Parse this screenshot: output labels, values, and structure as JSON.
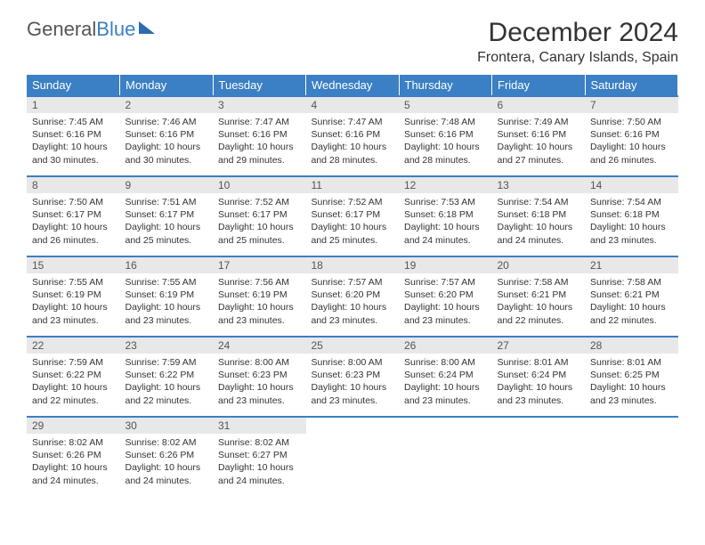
{
  "logo": {
    "text1": "General",
    "text2": "Blue"
  },
  "title": "December 2024",
  "location": "Frontera, Canary Islands, Spain",
  "day_headers": [
    "Sunday",
    "Monday",
    "Tuesday",
    "Wednesday",
    "Thursday",
    "Friday",
    "Saturday"
  ],
  "header_bg": "#3b7fc4",
  "daynum_bg": "#e8e8e8",
  "border_color": "#3b7fc4",
  "days": [
    {
      "n": "1",
      "sunrise": "7:45 AM",
      "sunset": "6:16 PM",
      "daylight": "10 hours and 30 minutes."
    },
    {
      "n": "2",
      "sunrise": "7:46 AM",
      "sunset": "6:16 PM",
      "daylight": "10 hours and 30 minutes."
    },
    {
      "n": "3",
      "sunrise": "7:47 AM",
      "sunset": "6:16 PM",
      "daylight": "10 hours and 29 minutes."
    },
    {
      "n": "4",
      "sunrise": "7:47 AM",
      "sunset": "6:16 PM",
      "daylight": "10 hours and 28 minutes."
    },
    {
      "n": "5",
      "sunrise": "7:48 AM",
      "sunset": "6:16 PM",
      "daylight": "10 hours and 28 minutes."
    },
    {
      "n": "6",
      "sunrise": "7:49 AM",
      "sunset": "6:16 PM",
      "daylight": "10 hours and 27 minutes."
    },
    {
      "n": "7",
      "sunrise": "7:50 AM",
      "sunset": "6:16 PM",
      "daylight": "10 hours and 26 minutes."
    },
    {
      "n": "8",
      "sunrise": "7:50 AM",
      "sunset": "6:17 PM",
      "daylight": "10 hours and 26 minutes."
    },
    {
      "n": "9",
      "sunrise": "7:51 AM",
      "sunset": "6:17 PM",
      "daylight": "10 hours and 25 minutes."
    },
    {
      "n": "10",
      "sunrise": "7:52 AM",
      "sunset": "6:17 PM",
      "daylight": "10 hours and 25 minutes."
    },
    {
      "n": "11",
      "sunrise": "7:52 AM",
      "sunset": "6:17 PM",
      "daylight": "10 hours and 25 minutes."
    },
    {
      "n": "12",
      "sunrise": "7:53 AM",
      "sunset": "6:18 PM",
      "daylight": "10 hours and 24 minutes."
    },
    {
      "n": "13",
      "sunrise": "7:54 AM",
      "sunset": "6:18 PM",
      "daylight": "10 hours and 24 minutes."
    },
    {
      "n": "14",
      "sunrise": "7:54 AM",
      "sunset": "6:18 PM",
      "daylight": "10 hours and 23 minutes."
    },
    {
      "n": "15",
      "sunrise": "7:55 AM",
      "sunset": "6:19 PM",
      "daylight": "10 hours and 23 minutes."
    },
    {
      "n": "16",
      "sunrise": "7:55 AM",
      "sunset": "6:19 PM",
      "daylight": "10 hours and 23 minutes."
    },
    {
      "n": "17",
      "sunrise": "7:56 AM",
      "sunset": "6:19 PM",
      "daylight": "10 hours and 23 minutes."
    },
    {
      "n": "18",
      "sunrise": "7:57 AM",
      "sunset": "6:20 PM",
      "daylight": "10 hours and 23 minutes."
    },
    {
      "n": "19",
      "sunrise": "7:57 AM",
      "sunset": "6:20 PM",
      "daylight": "10 hours and 23 minutes."
    },
    {
      "n": "20",
      "sunrise": "7:58 AM",
      "sunset": "6:21 PM",
      "daylight": "10 hours and 22 minutes."
    },
    {
      "n": "21",
      "sunrise": "7:58 AM",
      "sunset": "6:21 PM",
      "daylight": "10 hours and 22 minutes."
    },
    {
      "n": "22",
      "sunrise": "7:59 AM",
      "sunset": "6:22 PM",
      "daylight": "10 hours and 22 minutes."
    },
    {
      "n": "23",
      "sunrise": "7:59 AM",
      "sunset": "6:22 PM",
      "daylight": "10 hours and 22 minutes."
    },
    {
      "n": "24",
      "sunrise": "8:00 AM",
      "sunset": "6:23 PM",
      "daylight": "10 hours and 23 minutes."
    },
    {
      "n": "25",
      "sunrise": "8:00 AM",
      "sunset": "6:23 PM",
      "daylight": "10 hours and 23 minutes."
    },
    {
      "n": "26",
      "sunrise": "8:00 AM",
      "sunset": "6:24 PM",
      "daylight": "10 hours and 23 minutes."
    },
    {
      "n": "27",
      "sunrise": "8:01 AM",
      "sunset": "6:24 PM",
      "daylight": "10 hours and 23 minutes."
    },
    {
      "n": "28",
      "sunrise": "8:01 AM",
      "sunset": "6:25 PM",
      "daylight": "10 hours and 23 minutes."
    },
    {
      "n": "29",
      "sunrise": "8:02 AM",
      "sunset": "6:26 PM",
      "daylight": "10 hours and 24 minutes."
    },
    {
      "n": "30",
      "sunrise": "8:02 AM",
      "sunset": "6:26 PM",
      "daylight": "10 hours and 24 minutes."
    },
    {
      "n": "31",
      "sunrise": "8:02 AM",
      "sunset": "6:27 PM",
      "daylight": "10 hours and 24 minutes."
    }
  ],
  "labels": {
    "sunrise": "Sunrise: ",
    "sunset": "Sunset: ",
    "daylight": "Daylight: "
  }
}
